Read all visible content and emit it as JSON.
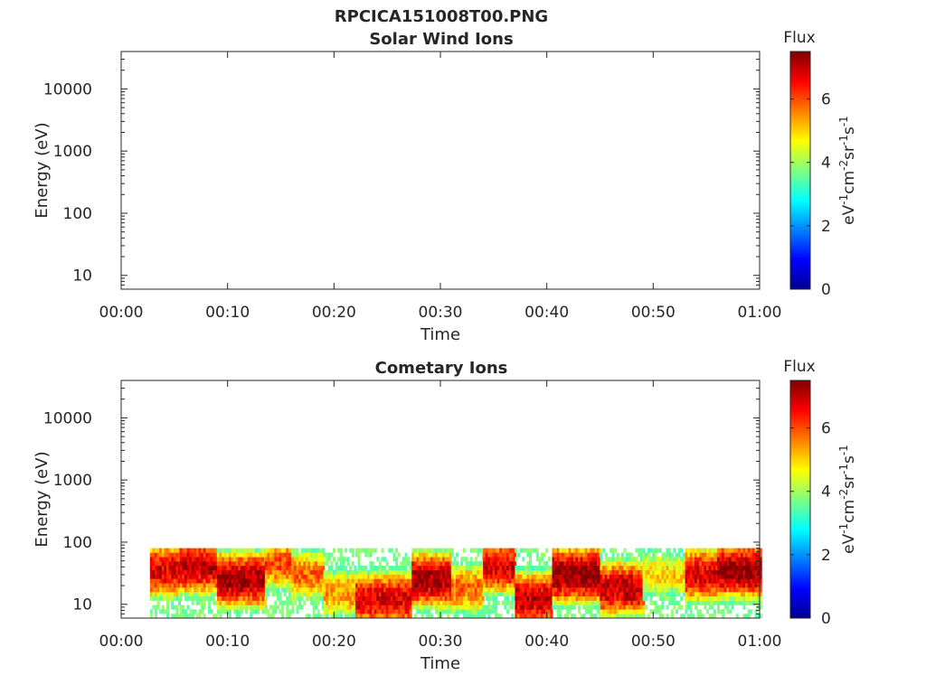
{
  "figure_title": "RPCICA151008T00.PNG",
  "colorbar": {
    "title": "Flux",
    "unit_base": "eV",
    "unit_parts": [
      {
        "text": "eV",
        "sup": "-1"
      },
      {
        "text": "cm",
        "sup": "-2"
      },
      {
        "text": "sr",
        "sup": "-1"
      },
      {
        "text": "s",
        "sup": "-1"
      }
    ],
    "ticks": [
      "0",
      "2",
      "4",
      "6"
    ],
    "range": [
      0,
      7.5
    ],
    "colormap": "jet",
    "colors": [
      "#00008f",
      "#0000ff",
      "#00ffff",
      "#ffff00",
      "#ff0000",
      "#800000"
    ]
  },
  "chart_data": [
    {
      "type": "heatmap",
      "title": "Solar Wind Ions",
      "xlabel": "Time",
      "ylabel": "Energy (eV)",
      "x_ticks": [
        "00:00",
        "00:10",
        "00:20",
        "00:30",
        "00:40",
        "00:50",
        "01:00"
      ],
      "xlim_minutes": [
        0,
        60
      ],
      "y_ticks": [
        "10",
        "100",
        "1000",
        "10000"
      ],
      "y_scale": "log",
      "ylim": [
        6,
        40000
      ],
      "cells": []
    },
    {
      "type": "heatmap",
      "title": "Cometary Ions",
      "xlabel": "Time",
      "ylabel": "Energy (eV)",
      "x_ticks": [
        "00:00",
        "00:10",
        "00:20",
        "00:30",
        "00:40",
        "00:50",
        "01:00"
      ],
      "xlim_minutes": [
        0,
        60
      ],
      "y_ticks": [
        "10",
        "100",
        "1000",
        "10000"
      ],
      "y_scale": "log",
      "ylim": [
        6,
        40000
      ],
      "energy_range_with_data": [
        6,
        80
      ],
      "segments": [
        {
          "start_min": 2.7,
          "end_min": 5.5,
          "peak_energy": 35,
          "peak_flux": 6.8
        },
        {
          "start_min": 5.5,
          "end_min": 9.0,
          "peak_energy": 40,
          "peak_flux": 7.0
        },
        {
          "start_min": 9.0,
          "end_min": 13.5,
          "peak_energy": 25,
          "peak_flux": 7.2
        },
        {
          "start_min": 13.5,
          "end_min": 16.0,
          "peak_energy": 45,
          "peak_flux": 6.0
        },
        {
          "start_min": 16.0,
          "end_min": 19.0,
          "peak_energy": 30,
          "peak_flux": 5.8
        },
        {
          "start_min": 19.0,
          "end_min": 22.0,
          "peak_energy": 15,
          "peak_flux": 5.5
        },
        {
          "start_min": 22.0,
          "end_min": 27.3,
          "peak_energy": 12,
          "peak_flux": 6.8
        },
        {
          "start_min": 27.3,
          "end_min": 31.0,
          "peak_energy": 25,
          "peak_flux": 7.2
        },
        {
          "start_min": 31.0,
          "end_min": 34.0,
          "peak_energy": 18,
          "peak_flux": 5.8
        },
        {
          "start_min": 34.0,
          "end_min": 37.0,
          "peak_energy": 40,
          "peak_flux": 6.8
        },
        {
          "start_min": 37.0,
          "end_min": 40.5,
          "peak_energy": 12,
          "peak_flux": 7.0
        },
        {
          "start_min": 40.5,
          "end_min": 45.0,
          "peak_energy": 30,
          "peak_flux": 7.4
        },
        {
          "start_min": 45.0,
          "end_min": 49.0,
          "peak_energy": 18,
          "peak_flux": 7.0
        },
        {
          "start_min": 49.0,
          "end_min": 53.0,
          "peak_energy": 30,
          "peak_flux": 5.0
        },
        {
          "start_min": 53.0,
          "end_min": 56.0,
          "peak_energy": 30,
          "peak_flux": 6.8
        },
        {
          "start_min": 56.0,
          "end_min": 60.0,
          "peak_energy": 35,
          "peak_flux": 7.3
        }
      ]
    }
  ]
}
